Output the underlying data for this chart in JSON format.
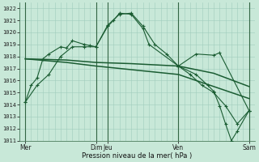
{
  "title": "Pression niveau de la mer( hPa )",
  "bg_color": "#c8e8d8",
  "grid_color": "#a0ccbc",
  "line_color": "#1a5c32",
  "vline_color": "#336644",
  "ylim": [
    1011,
    1022.5
  ],
  "yticks": [
    1011,
    1012,
    1013,
    1014,
    1015,
    1016,
    1017,
    1018,
    1019,
    1020,
    1021,
    1022
  ],
  "xlim": [
    0,
    20
  ],
  "xtick_labels": [
    "Mer",
    "Dim",
    "Jeu",
    "Ven",
    "Sam"
  ],
  "xtick_positions": [
    0.5,
    6.5,
    7.5,
    13.5,
    19.5
  ],
  "vline_positions": [
    0.5,
    6.5,
    7.5,
    13.5,
    19.5
  ],
  "series1_x": [
    0.5,
    1.0,
    1.5,
    2.0,
    2.5,
    3.5,
    4.0,
    4.5,
    5.5,
    6.0,
    6.5,
    7.5,
    8.0,
    8.5,
    9.5,
    10.5,
    11.0,
    13.5,
    15.0,
    16.5,
    17.0,
    19.5
  ],
  "series1_y": [
    1014.2,
    1015.6,
    1016.2,
    1017.8,
    1018.2,
    1018.8,
    1018.7,
    1019.3,
    1019.0,
    1018.9,
    1018.8,
    1020.5,
    1021.0,
    1021.6,
    1021.5,
    1020.3,
    1019.0,
    1017.2,
    1018.2,
    1018.1,
    1018.3,
    1013.5
  ],
  "series2_x": [
    0.5,
    1.5,
    2.5,
    3.5,
    4.5,
    5.5,
    6.5,
    7.5,
    8.5,
    9.5,
    10.5,
    11.5,
    12.5,
    13.5,
    14.5,
    15.5,
    16.5,
    17.5,
    18.5,
    19.5
  ],
  "series2_y": [
    1014.2,
    1015.6,
    1016.5,
    1018.0,
    1018.8,
    1018.8,
    1018.8,
    1020.6,
    1021.5,
    1021.6,
    1020.5,
    1019.0,
    1018.2,
    1017.2,
    1016.5,
    1015.6,
    1015.0,
    1013.9,
    1012.4,
    1013.5
  ],
  "series3_x": [
    0.5,
    4.0,
    6.5,
    9.5,
    13.5,
    16.5,
    19.5
  ],
  "series3_y": [
    1017.8,
    1017.7,
    1017.5,
    1017.4,
    1017.2,
    1016.6,
    1015.5
  ],
  "series4_x": [
    0.5,
    4.0,
    6.5,
    9.5,
    13.5,
    16.5,
    19.5
  ],
  "series4_y": [
    1017.8,
    1017.5,
    1017.2,
    1016.9,
    1016.5,
    1015.5,
    1014.5
  ],
  "series5_x": [
    13.5,
    15.0,
    16.0,
    16.5,
    17.0,
    17.5,
    18.0,
    18.5,
    19.5
  ],
  "series5_y": [
    1017.2,
    1016.5,
    1015.6,
    1015.1,
    1013.9,
    1012.4,
    1011.0,
    1011.8,
    1013.5
  ]
}
